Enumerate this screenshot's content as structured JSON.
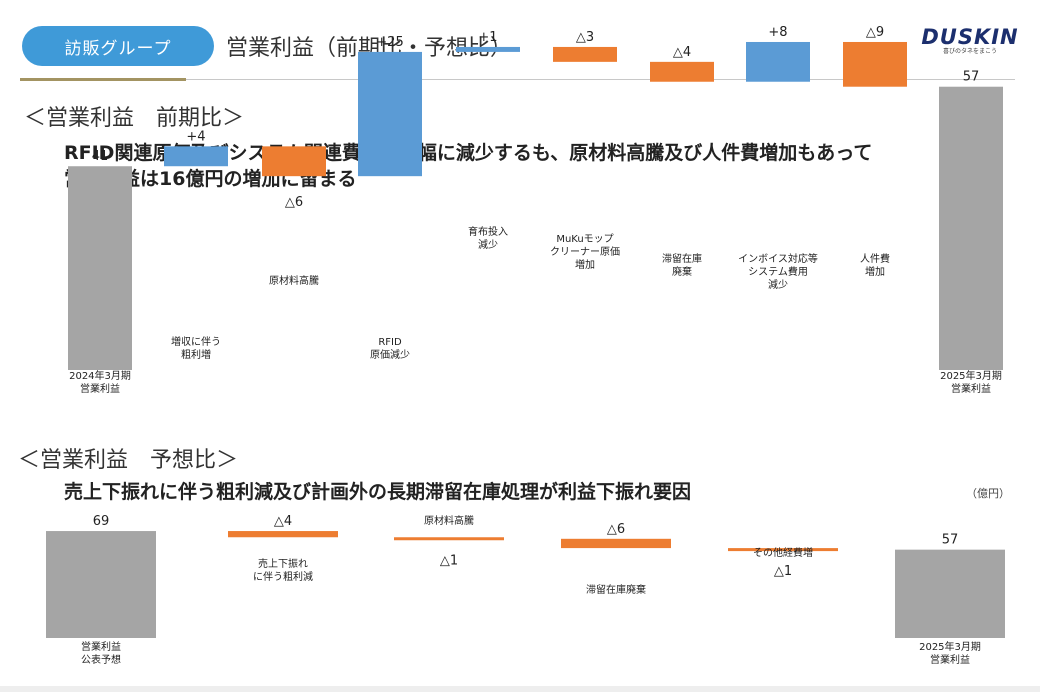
{
  "header": {
    "group_label": "訪販グループ",
    "title": "営業利益（前期比・予想比）",
    "logo": "DUSKIN"
  },
  "section1": {
    "heading": "＜営業利益　前期比＞",
    "headline1": "RFID関連原価及びシステム関連費用が大幅に減少するも、原材料高騰及び人件費増加もあって",
    "headline2": "営業利益は16億円の増加に留まる",
    "unit": "（億円）"
  },
  "section2": {
    "heading": "＜営業利益　予想比＞",
    "headline": "売上下振れに伴う粗利減及び計画外の長期滞留在庫処理が利益下振れ要因",
    "unit": "（億円）"
  },
  "colors": {
    "increase": "#5b9bd5",
    "decrease": "#ed7d31",
    "total": "#a5a5a5"
  },
  "chart_data": [
    {
      "type": "bar",
      "subtype": "waterfall",
      "title": "＜営業利益　前期比＞",
      "unit": "（億円）",
      "categories": [
        "2024年3月期|営業利益",
        "増収に伴う|粗利増",
        "原材料高騰",
        "RFID|原価減少",
        "育布投入|減少",
        "MuKuモップ|クリーナー原価|増加",
        "滞留在庫|廃棄",
        "インボイス対応等|システム費用|減少",
        "人件費|増加",
        "2025年3月期|営業利益"
      ],
      "values": [
        41,
        4,
        -6,
        25,
        1,
        -3,
        -4,
        8,
        -9,
        57
      ],
      "value_labels": [
        "41",
        "+4",
        "△6",
        "+25",
        "+1",
        "△3",
        "△4",
        "+8",
        "△9",
        "57"
      ],
      "kinds": [
        "total",
        "up",
        "down",
        "up",
        "up",
        "down",
        "down",
        "up",
        "down",
        "total"
      ]
    },
    {
      "type": "bar",
      "subtype": "waterfall",
      "title": "＜営業利益　予想比＞",
      "unit": "（億円）",
      "categories": [
        "営業利益|公表予想",
        "売上下振れ|に伴う粗利減",
        "原材料高騰",
        "滞留在庫廃棄",
        "その他経費増",
        "2025年3月期|営業利益"
      ],
      "values": [
        69,
        -4,
        -1,
        -6,
        -1,
        57
      ],
      "value_labels": [
        "69",
        "△4",
        "△1",
        "△6",
        "△1",
        "57"
      ],
      "kinds": [
        "total",
        "down",
        "down",
        "down",
        "down",
        "total"
      ]
    }
  ]
}
